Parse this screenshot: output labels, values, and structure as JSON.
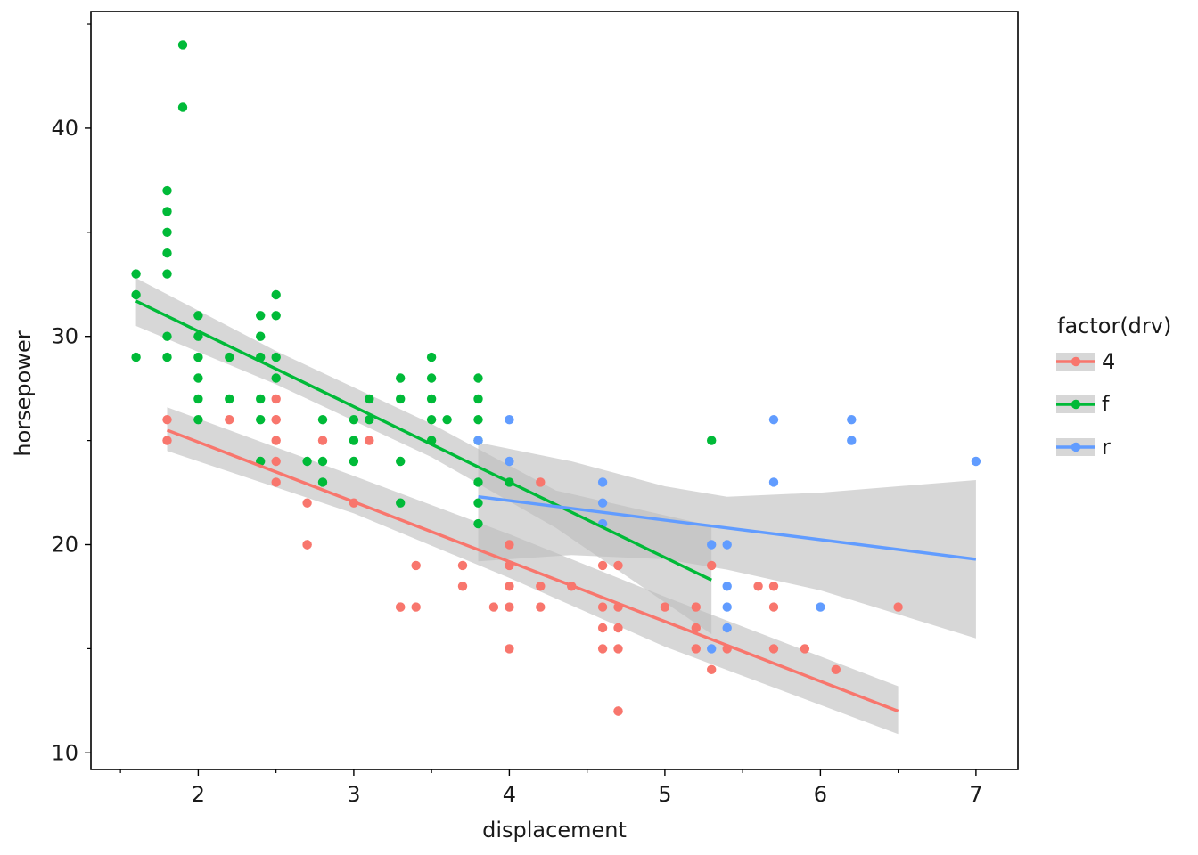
{
  "chart_data": {
    "type": "scatter",
    "title": "",
    "xlabel": "displacement",
    "ylabel": "horsepower",
    "xlim": [
      1.31,
      7.27
    ],
    "ylim": [
      9.2,
      45.6
    ],
    "x_ticks": [
      2,
      3,
      4,
      5,
      6,
      7
    ],
    "x_tick_labels": [
      "2",
      "3",
      "4",
      "5",
      "6",
      "7"
    ],
    "y_ticks": [
      10,
      20,
      30,
      40
    ],
    "y_tick_labels": [
      "10",
      "20",
      "30",
      "40"
    ],
    "x_minor_ticks": [
      1.5,
      2.5,
      3.5,
      4.5,
      5.5,
      6.5
    ],
    "y_minor_ticks": [
      15,
      25,
      35,
      45
    ],
    "grid": false,
    "legend": {
      "title": "factor(drv)",
      "placement": "right",
      "entries": [
        "4",
        "f",
        "r"
      ]
    },
    "colors": {
      "4": "#F8766D",
      "f": "#00BA38",
      "r": "#619CFF",
      "band": "#bdbdbd"
    },
    "series": [
      {
        "name": "4",
        "points": [
          [
            1.8,
            26
          ],
          [
            1.8,
            25
          ],
          [
            2.2,
            26
          ],
          [
            2.5,
            27
          ],
          [
            2.5,
            26
          ],
          [
            2.5,
            26
          ],
          [
            2.5,
            25
          ],
          [
            2.5,
            24
          ],
          [
            2.5,
            23
          ],
          [
            2.7,
            22
          ],
          [
            2.7,
            20
          ],
          [
            2.7,
            20
          ],
          [
            2.8,
            25
          ],
          [
            3.0,
            22
          ],
          [
            3.1,
            25
          ],
          [
            3.3,
            17
          ],
          [
            3.3,
            17
          ],
          [
            3.4,
            17
          ],
          [
            3.4,
            19
          ],
          [
            3.7,
            19
          ],
          [
            3.7,
            18
          ],
          [
            3.9,
            17
          ],
          [
            4.0,
            20
          ],
          [
            4.0,
            19
          ],
          [
            4.0,
            18
          ],
          [
            4.0,
            17
          ],
          [
            4.0,
            15
          ],
          [
            4.2,
            23
          ],
          [
            4.2,
            18
          ],
          [
            4.2,
            17
          ],
          [
            4.4,
            18
          ],
          [
            4.6,
            19
          ],
          [
            4.6,
            17
          ],
          [
            4.6,
            16
          ],
          [
            4.6,
            15
          ],
          [
            4.7,
            19
          ],
          [
            4.7,
            17
          ],
          [
            4.7,
            16
          ],
          [
            4.7,
            15
          ],
          [
            4.7,
            12
          ],
          [
            4.7,
            12
          ],
          [
            5.0,
            17
          ],
          [
            5.2,
            17
          ],
          [
            5.2,
            16
          ],
          [
            5.2,
            15
          ],
          [
            5.3,
            19
          ],
          [
            5.3,
            14
          ],
          [
            5.4,
            15
          ],
          [
            5.6,
            18
          ],
          [
            5.7,
            18
          ],
          [
            5.7,
            17
          ],
          [
            5.7,
            15
          ],
          [
            5.9,
            15
          ],
          [
            6.1,
            14
          ],
          [
            6.5,
            17
          ]
        ],
        "fit": {
          "x": [
            1.8,
            6.5
          ],
          "y": [
            25.5,
            12.0
          ],
          "ci_x": [
            1.8,
            3.0,
            4.0,
            5.0,
            6.5
          ],
          "ci_lower": [
            24.5,
            21.5,
            18.4,
            15.1,
            10.9
          ],
          "ci_upper": [
            26.6,
            23.3,
            20.5,
            17.5,
            13.2
          ]
        }
      },
      {
        "name": "f",
        "points": [
          [
            1.6,
            33
          ],
          [
            1.6,
            32
          ],
          [
            1.6,
            29
          ],
          [
            1.8,
            37
          ],
          [
            1.8,
            36
          ],
          [
            1.8,
            35
          ],
          [
            1.8,
            34
          ],
          [
            1.8,
            33
          ],
          [
            1.8,
            30
          ],
          [
            1.8,
            29
          ],
          [
            1.9,
            44
          ],
          [
            1.9,
            41
          ],
          [
            2.0,
            31
          ],
          [
            2.0,
            30
          ],
          [
            2.0,
            29
          ],
          [
            2.0,
            28
          ],
          [
            2.0,
            27
          ],
          [
            2.0,
            26
          ],
          [
            2.2,
            29
          ],
          [
            2.2,
            27
          ],
          [
            2.4,
            31
          ],
          [
            2.4,
            30
          ],
          [
            2.4,
            29
          ],
          [
            2.4,
            27
          ],
          [
            2.4,
            26
          ],
          [
            2.4,
            24
          ],
          [
            2.5,
            32
          ],
          [
            2.5,
            31
          ],
          [
            2.5,
            29
          ],
          [
            2.5,
            28
          ],
          [
            2.7,
            24
          ],
          [
            2.8,
            26
          ],
          [
            2.8,
            24
          ],
          [
            2.8,
            23
          ],
          [
            3.0,
            26
          ],
          [
            3.0,
            25
          ],
          [
            3.0,
            24
          ],
          [
            3.1,
            27
          ],
          [
            3.1,
            26
          ],
          [
            3.3,
            28
          ],
          [
            3.3,
            27
          ],
          [
            3.3,
            24
          ],
          [
            3.3,
            22
          ],
          [
            3.5,
            29
          ],
          [
            3.5,
            28
          ],
          [
            3.5,
            27
          ],
          [
            3.5,
            26
          ],
          [
            3.5,
            25
          ],
          [
            3.6,
            26
          ],
          [
            3.8,
            28
          ],
          [
            3.8,
            27
          ],
          [
            3.8,
            26
          ],
          [
            3.8,
            25
          ],
          [
            3.8,
            23
          ],
          [
            3.8,
            22
          ],
          [
            3.8,
            21
          ],
          [
            4.0,
            23
          ],
          [
            5.3,
            25
          ]
        ],
        "fit": {
          "x": [
            1.6,
            5.3
          ],
          "y": [
            31.7,
            18.3
          ],
          "ci_x": [
            1.6,
            2.5,
            3.5,
            4.3,
            5.3
          ],
          "ci_lower": [
            30.5,
            27.7,
            24.2,
            20.8,
            15.7
          ],
          "ci_upper": [
            32.8,
            29.3,
            25.8,
            22.6,
            20.9
          ]
        }
      },
      {
        "name": "r",
        "points": [
          [
            3.8,
            25
          ],
          [
            4.0,
            26
          ],
          [
            4.0,
            24
          ],
          [
            4.6,
            23
          ],
          [
            4.6,
            22
          ],
          [
            4.6,
            21
          ],
          [
            5.3,
            20
          ],
          [
            5.3,
            15
          ],
          [
            5.4,
            20
          ],
          [
            5.4,
            18
          ],
          [
            5.4,
            17
          ],
          [
            5.4,
            16
          ],
          [
            5.7,
            26
          ],
          [
            5.7,
            23
          ],
          [
            6.0,
            17
          ],
          [
            6.2,
            26
          ],
          [
            6.2,
            25
          ],
          [
            7.0,
            24
          ]
        ],
        "fit": {
          "x": [
            3.8,
            7.0
          ],
          "y": [
            22.3,
            19.3
          ],
          "ci_x": [
            3.8,
            4.4,
            5.0,
            5.4,
            6.0,
            7.0
          ],
          "ci_lower": [
            19.2,
            19.5,
            19.3,
            18.8,
            17.8,
            15.5
          ],
          "ci_upper": [
            24.9,
            24.0,
            22.8,
            22.3,
            22.5,
            23.1
          ]
        }
      }
    ]
  }
}
